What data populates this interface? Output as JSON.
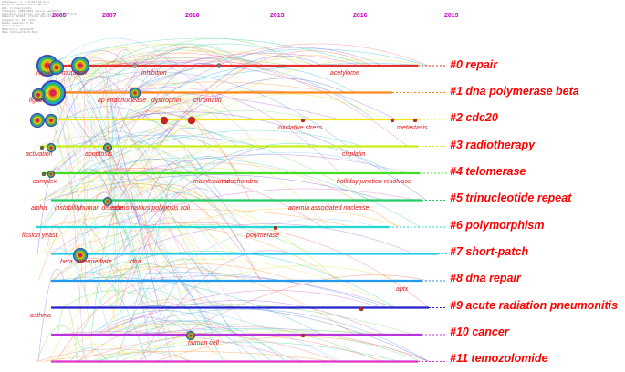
{
  "meta_lines": [
    "CiteSpace, v. 5.6.R2 (64-bit)",
    "March 1, 2020 5:48:41 PM CST",
    "WoS: C:\\Users\\data",
    "Timespan: 2005-2019 (Slice Length=1)",
    "Selection Criteria: Top 50 per slice, LRF=3.0",
    "Network: N=264, E=1140 (Density=0.0328)",
    "Largest CC: 257 (97%)",
    "Nodes Labeled: 1.0%",
    "Pruning: None",
    "Modularity Q=0.6178",
    "Mean Silhouette=0.3412"
  ],
  "years": [
    "2005",
    "2007",
    "2010",
    "2013",
    "2016",
    "2019"
  ],
  "clusters": [
    {
      "label": "#0 repair",
      "color": "#e53030"
    },
    {
      "label": "#1 dna polymerase beta",
      "color": "#ff8a1a"
    },
    {
      "label": "#2 cdc20",
      "color": "#f2e61a"
    },
    {
      "label": "#3 radiotherapy",
      "color": "#c8f018"
    },
    {
      "label": "#4 telomerase",
      "color": "#44dd22"
    },
    {
      "label": "#5 trinucleotide repeat",
      "color": "#22cc66"
    },
    {
      "label": "#6 polymorphism",
      "color": "#22d8d8"
    },
    {
      "label": "#7 short-patch",
      "color": "#22ccee"
    },
    {
      "label": "#8 dna repair",
      "color": "#2299ee"
    },
    {
      "label": "#9 acute radiation pneumonitis",
      "color": "#2222cc"
    },
    {
      "label": "#10 cancer",
      "color": "#bb33dd"
    },
    {
      "label": "#11 temozolomide",
      "color": "#dd33cc"
    }
  ],
  "node_labels": [
    "repair",
    "mutation",
    "inhibition",
    "acetylome",
    "ligase",
    "ap endonuclease",
    "dystrophin",
    "chromatin",
    "oxidative stress",
    "metastasis",
    "activation",
    "apoptosis",
    "cisplatin",
    "complex",
    "maintenance",
    "mitochondria",
    "holliday junction resolvase",
    "alpha",
    "instability",
    "human disease",
    "adenomatous polyposis coli",
    "anemia associated nuclease",
    "fission yeast",
    "polymerase",
    "beta",
    "intermediate",
    "dna",
    "aptx",
    "asthma",
    "human cell"
  ]
}
